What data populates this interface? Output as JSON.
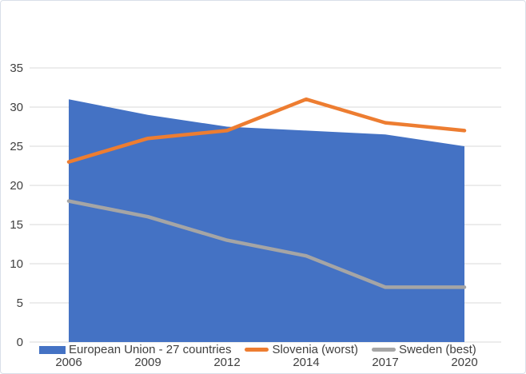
{
  "chart_data": {
    "type": "area",
    "title": "",
    "xlabel": "",
    "ylabel": "",
    "categories": [
      "2006",
      "2009",
      "2012",
      "2014",
      "2017",
      "2020"
    ],
    "series": [
      {
        "name": "European Union - 27 countries",
        "render": "area",
        "color": "#4472C4",
        "values": [
          31,
          29,
          27.5,
          27,
          26.5,
          25
        ]
      },
      {
        "name": "Slovenia (worst)",
        "render": "line",
        "color": "#ED7D31",
        "values": [
          23,
          26,
          27,
          31,
          28,
          27
        ]
      },
      {
        "name": "Sweden (best)",
        "render": "line",
        "color": "#A5A5A5",
        "values": [
          18,
          16,
          13,
          11,
          7,
          7
        ]
      }
    ],
    "ylim": [
      0,
      35
    ],
    "ytick_step": 5,
    "yticks": [
      0,
      5,
      10,
      15,
      20,
      25,
      30,
      35
    ],
    "grid": true,
    "legend_position": "bottom",
    "text_color": "#404040",
    "gridline_color": "#D9D9D9",
    "frame_border_color": "#D9DFE9",
    "background_color": "#FFFFFF"
  }
}
